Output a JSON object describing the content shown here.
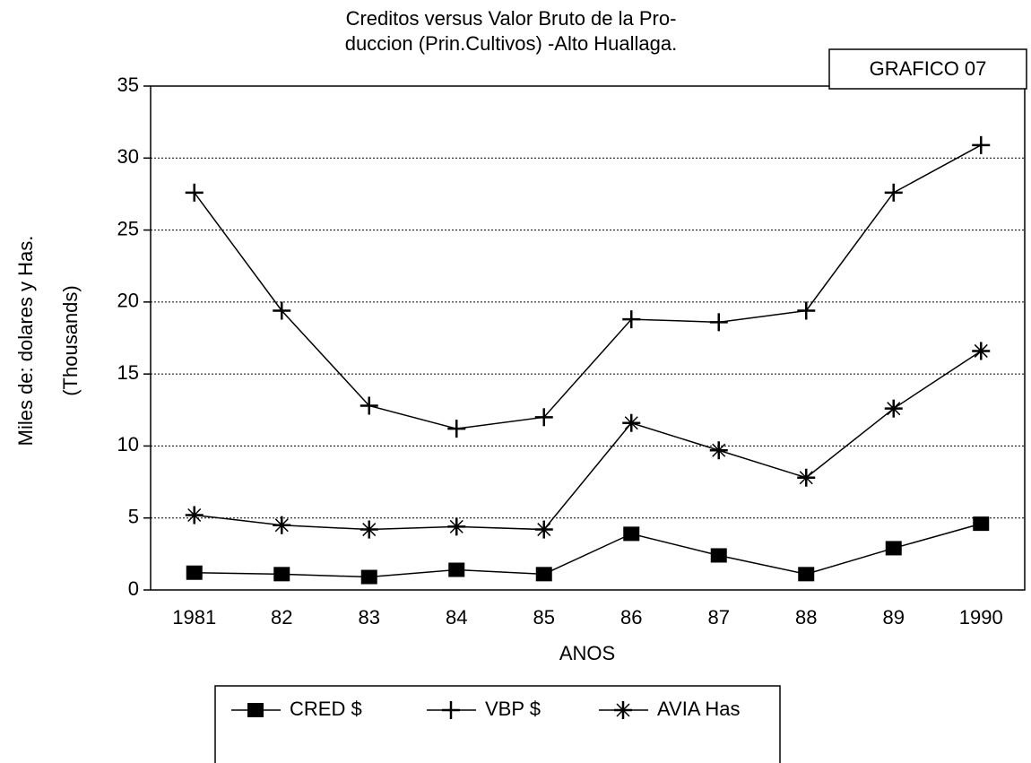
{
  "chart_data": {
    "type": "line",
    "title": [
      "Creditos versus Valor Bruto de la Pro-",
      "duccion (Prin.Cultivos) -Alto Huallaga."
    ],
    "annotation": "GRAFICO 07",
    "y_label": [
      "Miles de: dolares y Has.",
      "(Thousands)"
    ],
    "x_label": "ANOS",
    "categories": [
      "1981",
      "82",
      "83",
      "84",
      "85",
      "86",
      "87",
      "88",
      "89",
      "1990"
    ],
    "series": [
      {
        "name": "CRED $",
        "color": "#000000",
        "marker": "square",
        "values": [
          1.2,
          1.1,
          0.9,
          1.4,
          1.1,
          3.9,
          2.4,
          1.1,
          2.9,
          4.6
        ]
      },
      {
        "name": "VBP $",
        "color": "#000000",
        "marker": "plus",
        "values": [
          27.6,
          19.4,
          12.8,
          11.2,
          12.0,
          18.8,
          18.6,
          19.4,
          27.6,
          30.9
        ]
      },
      {
        "name": "AVIA Has",
        "color": "#000000",
        "marker": "asterisk",
        "values": [
          5.2,
          4.5,
          4.2,
          4.4,
          4.2,
          11.6,
          9.7,
          7.8,
          12.6,
          16.6
        ]
      }
    ],
    "ylim": [
      0,
      35
    ],
    "yticks": [
      0,
      5,
      10,
      15,
      20,
      25,
      30,
      35
    ],
    "grid": true,
    "legend": "bottom"
  }
}
